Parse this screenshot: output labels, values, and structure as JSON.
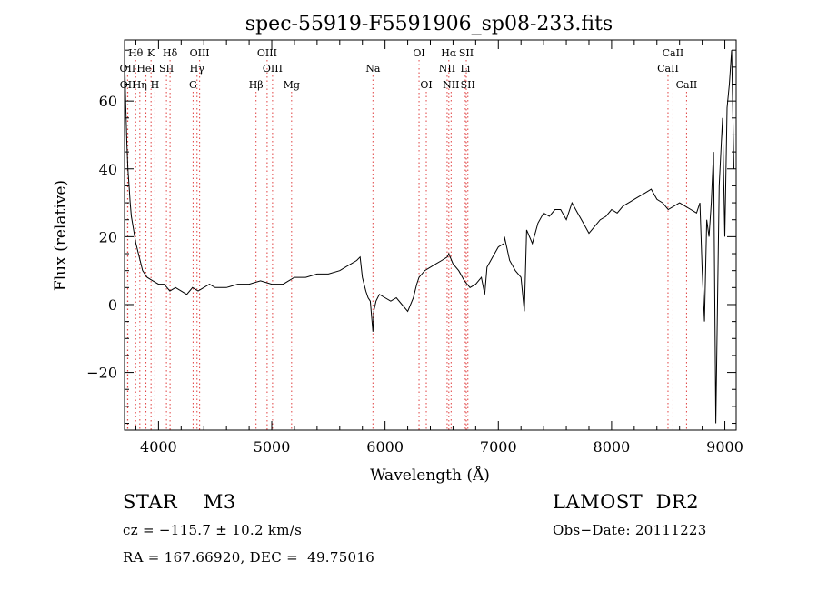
{
  "chart_data": {
    "type": "line",
    "title": "spec-55919-F5591906_sp08-233.fits",
    "xlabel": "Wavelength (Å)",
    "ylabel": "Flux (relative)",
    "xlim": [
      3700,
      9100
    ],
    "ylim": [
      -37,
      78
    ],
    "x_ticks": [
      4000,
      5000,
      6000,
      7000,
      8000,
      9000
    ],
    "y_ticks": [
      -20,
      0,
      20,
      40,
      60
    ],
    "grid": false,
    "series": [
      {
        "x": [
          3700,
          3710,
          3720,
          3730,
          3740,
          3750,
          3760,
          3780,
          3800,
          3830,
          3860,
          3900,
          3950,
          4000,
          4050,
          4100,
          4150,
          4200,
          4250,
          4300,
          4350,
          4400,
          4450,
          4500,
          4600,
          4700,
          4800,
          4900,
          5000,
          5100,
          5200,
          5300,
          5400,
          5500,
          5600,
          5650,
          5700,
          5750,
          5780,
          5800,
          5830,
          5850,
          5870,
          5880,
          5893,
          5900,
          5920,
          5950,
          6000,
          6050,
          6100,
          6150,
          6200,
          6250,
          6280,
          6300,
          6350,
          6400,
          6450,
          6500,
          6550,
          6563,
          6600,
          6650,
          6700,
          6750,
          6800,
          6850,
          6880,
          6900,
          6950,
          7000,
          7050,
          7054,
          7100,
          7150,
          7200,
          7230,
          7250,
          7300,
          7350,
          7400,
          7450,
          7500,
          7550,
          7600,
          7650,
          7700,
          7750,
          7800,
          7850,
          7900,
          7950,
          8000,
          8050,
          8100,
          8150,
          8200,
          8250,
          8300,
          8350,
          8400,
          8450,
          8500,
          8550,
          8600,
          8650,
          8700,
          8750,
          8780,
          8800,
          8820,
          8840,
          8860,
          8880,
          8900,
          8920,
          8950,
          8980,
          9000,
          9020,
          9040,
          9060,
          9080
        ],
        "y": [
          74,
          60,
          48,
          40,
          35,
          30,
          26,
          22,
          18,
          14,
          10,
          8,
          7,
          6,
          6,
          4,
          5,
          4,
          3,
          5,
          4,
          5,
          6,
          5,
          5,
          6,
          6,
          7,
          6,
          6,
          8,
          8,
          9,
          9,
          10,
          11,
          12,
          13,
          14,
          8,
          4,
          2,
          1,
          -3,
          -8,
          -2,
          1,
          3,
          2,
          1,
          2,
          0,
          -2,
          2,
          6,
          8,
          10,
          11,
          12,
          13,
          14,
          15,
          12,
          10,
          7,
          5,
          6,
          8,
          3,
          11,
          14,
          17,
          18,
          20,
          13,
          10,
          8,
          -2,
          22,
          18,
          24,
          27,
          26,
          28,
          28,
          25,
          30,
          27,
          24,
          21,
          23,
          25,
          26,
          28,
          27,
          29,
          30,
          31,
          32,
          33,
          34,
          31,
          30,
          28,
          29,
          30,
          29,
          28,
          27,
          30,
          10,
          -5,
          25,
          20,
          30,
          45,
          -35,
          35,
          55,
          20,
          58,
          65,
          75,
          40
        ]
      }
    ],
    "line_markers": [
      {
        "label": "Hθ",
        "x": 3798,
        "row": 0
      },
      {
        "label": "K",
        "x": 3934,
        "row": 0
      },
      {
        "label": "Hδ",
        "x": 4102,
        "row": 0
      },
      {
        "label": "OIII",
        "x": 4363,
        "row": 0
      },
      {
        "label": "OIII",
        "x": 4959,
        "row": 0
      },
      {
        "label": "OI",
        "x": 6300,
        "row": 0
      },
      {
        "label": "Hα",
        "x": 6563,
        "row": 0
      },
      {
        "label": "SII",
        "x": 6717,
        "row": 0
      },
      {
        "label": "CaII",
        "x": 8542,
        "row": 0
      },
      {
        "label": "OII",
        "x": 3727,
        "row": 1
      },
      {
        "label": "HeI",
        "x": 3889,
        "row": 1
      },
      {
        "label": "SII",
        "x": 4070,
        "row": 1
      },
      {
        "label": "Hγ",
        "x": 4340,
        "row": 1
      },
      {
        "label": "OIII",
        "x": 5007,
        "row": 1
      },
      {
        "label": "Na",
        "x": 5893,
        "row": 1
      },
      {
        "label": "NII",
        "x": 6548,
        "row": 1
      },
      {
        "label": "Li",
        "x": 6708,
        "row": 1
      },
      {
        "label": "CaII",
        "x": 8498,
        "row": 1
      },
      {
        "label": "OII",
        "x": 3729,
        "row": 2
      },
      {
        "label": "Hη",
        "x": 3835,
        "row": 2
      },
      {
        "label": "H",
        "x": 3968,
        "row": 2
      },
      {
        "label": "G",
        "x": 4305,
        "row": 2
      },
      {
        "label": "Hβ",
        "x": 4861,
        "row": 2
      },
      {
        "label": "Mg",
        "x": 5175,
        "row": 2
      },
      {
        "label": "OI",
        "x": 6364,
        "row": 2
      },
      {
        "label": "NII",
        "x": 6583,
        "row": 2
      },
      {
        "label": "SII",
        "x": 6731,
        "row": 2
      },
      {
        "label": "CaII",
        "x": 8662,
        "row": 2
      }
    ],
    "marker_color": "#e04040"
  },
  "info": {
    "class_line": "STAR    M3",
    "survey": "LAMOST  DR2",
    "cz": "cz = −115.7 ± 10.2 km/s",
    "obs_date": "Obs−Date: 20111223",
    "radec": "RA = 167.66920, DEC =  49.75016"
  }
}
